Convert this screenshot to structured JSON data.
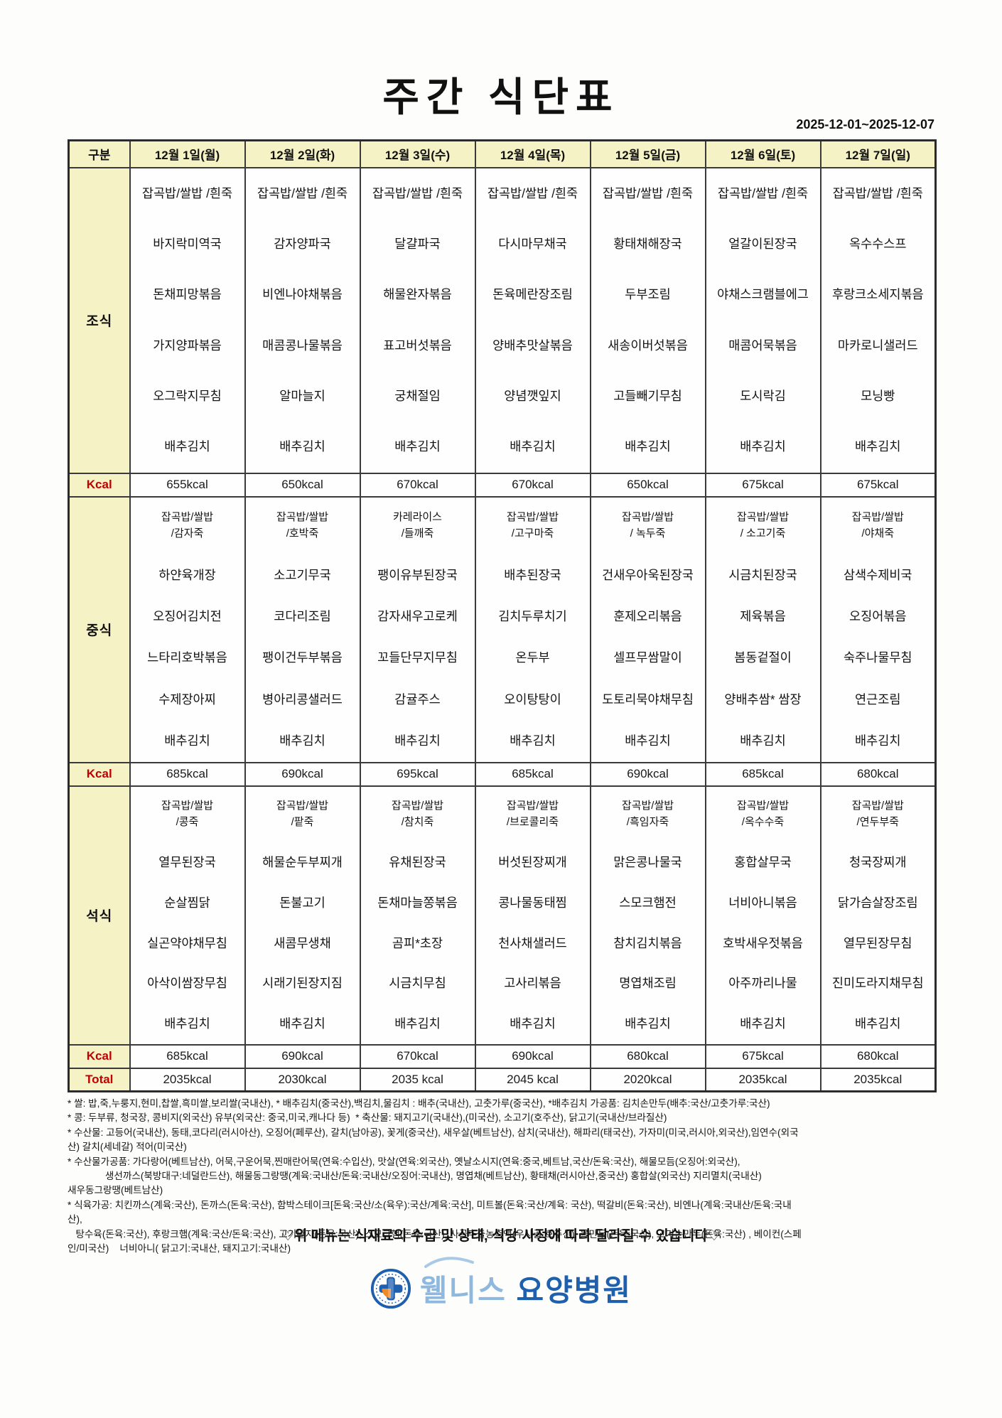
{
  "page": {
    "title": "주간  식단표",
    "date_range": "2025-12-01~2025-12-07"
  },
  "table": {
    "columns": [
      "구분",
      "12월 1일(월)",
      "12월 2일(화)",
      "12월 3일(수)",
      "12월 4일(목)",
      "12월 5일(금)",
      "12월 6일(토)",
      "12월 7일(일)"
    ],
    "sections": [
      {
        "id": "breakfast",
        "label": "조식",
        "days": [
          [
            "잡곡밥/쌀밥 /흰죽",
            "바지락미역국",
            "돈채피망볶음",
            "가지양파볶음",
            "오그락지무침",
            "배추김치"
          ],
          [
            "잡곡밥/쌀밥 /흰죽",
            "감자양파국",
            "비엔나야채볶음",
            "매콤콩나물볶음",
            "알마늘지",
            "배추김치"
          ],
          [
            "잡곡밥/쌀밥 /흰죽",
            "달걀파국",
            "해물완자볶음",
            "표고버섯볶음",
            "궁채절임",
            "배추김치"
          ],
          [
            "잡곡밥/쌀밥 /흰죽",
            "다시마무채국",
            "돈육메란장조림",
            "양배추맛살볶음",
            "양념깻잎지",
            "배추김치"
          ],
          [
            "잡곡밥/쌀밥 /흰죽",
            "황태채해장국",
            "두부조림",
            "새송이버섯볶음",
            "고들빼기무침",
            "배추김치"
          ],
          [
            "잡곡밥/쌀밥  /흰죽",
            "얼갈이된장국",
            "야채스크램블에그",
            "매콤어묵볶음",
            "도시락김",
            "배추김치"
          ],
          [
            "잡곡밥/쌀밥 /흰죽",
            "옥수수스프",
            "후랑크소세지볶음",
            "마카로니샐러드",
            "모닝빵",
            "배추김치"
          ]
        ],
        "kcal_label": "Kcal",
        "kcal": [
          "655kcal",
          "650kcal",
          "670kcal",
          "670kcal",
          "650kcal",
          "675kcal",
          "675kcal"
        ]
      },
      {
        "id": "lunch",
        "label": "중식",
        "days": [
          [
            "잡곡밥/쌀밥\n/감자죽",
            "하얀육개장",
            "오징어김치전",
            "느타리호박볶음",
            "수제장아찌",
            "배추김치"
          ],
          [
            "잡곡밥/쌀밥\n/호박죽",
            "소고기무국",
            "코다리조림",
            "팽이건두부볶음",
            "병아리콩샐러드",
            "배추김치"
          ],
          [
            "카레라이스\n/들깨죽",
            "팽이유부된장국",
            "감자새우고로케",
            "꼬들단무지무침",
            "감귤주스",
            "배추김치"
          ],
          [
            "잡곡밥/쌀밥\n/고구마죽",
            "배추된장국",
            "김치두루치기",
            "온두부",
            "오이탕탕이",
            "배추김치"
          ],
          [
            "잡곡밥/쌀밥\n/ 녹두죽",
            "건새우아욱된장국",
            "훈제오리볶음",
            "셀프무쌈말이",
            "도토리묵야채무침",
            "배추김치"
          ],
          [
            "잡곡밥/쌀밥\n/ 소고기죽",
            "시금치된장국",
            "제육볶음",
            "봄동겉절이",
            "양배추쌈* 쌈장",
            "배추김치"
          ],
          [
            "잡곡밥/쌀밥\n/야채죽",
            "삼색수제비국",
            "오징어볶음",
            "숙주나물무침",
            "연근조림",
            "배추김치"
          ]
        ],
        "kcal_label": "Kcal",
        "kcal": [
          "685kcal",
          "690kcal",
          "695kcal",
          "685kcal",
          "690kcal",
          "685kcal",
          "680kcal"
        ]
      },
      {
        "id": "dinner",
        "label": "석식",
        "days": [
          [
            "잡곡밥/쌀밥\n/콩죽",
            "열무된장국",
            "순살찜닭",
            "실곤약야채무침",
            "아삭이쌈장무침",
            "배추김치"
          ],
          [
            "잡곡밥/쌀밥\n/팥죽",
            "해물순두부찌개",
            "돈불고기",
            "새콤무생채",
            "시래기된장지짐",
            "배추김치"
          ],
          [
            "잡곡밥/쌀밥\n/참치죽",
            "유채된장국",
            "돈채마늘쫑볶음",
            "곰피*초장",
            "시금치무침",
            "배추김치"
          ],
          [
            "잡곡밥/쌀밥\n/브로콜리죽",
            "버섯된장찌개",
            "콩나물동태찜",
            "천사채샐러드",
            "고사리볶음",
            "배추김치"
          ],
          [
            "잡곡밥/쌀밥\n/흑임자죽",
            "맑은콩나물국",
            "스모크햄전",
            "참치김치볶음",
            "명엽채조림",
            "배추김치"
          ],
          [
            "잡곡밥/쌀밥\n/옥수수죽",
            "홍합살무국",
            "너비아니볶음",
            "호박새우젓볶음",
            "아주까리나물",
            "배추김치"
          ],
          [
            "잡곡밥/쌀밥\n/연두부죽",
            "청국장찌개",
            "닭가슴살장조림",
            "열무된장무침",
            "진미도라지채무침",
            "배추김치"
          ]
        ],
        "kcal_label": "Kcal",
        "kcal": [
          "685kcal",
          "690kcal",
          "670kcal",
          "690kcal",
          "680kcal",
          "675kcal",
          "680kcal"
        ]
      }
    ],
    "total": {
      "label": "Total",
      "values": [
        "2035kcal",
        "2030kcal",
        "2035 kcal",
        "2045 kcal",
        "2020kcal",
        "2035kcal",
        "2035kcal"
      ]
    }
  },
  "notes": {
    "lines": [
      "* 쌀: 밥,죽,누룽지,현미,찹쌀,흑미쌀,보리쌀(국내산), * 배추김치(중국산),백김치,물김치 : 배추(국내산), 고춧가루(중국산), *배추김치 가공품: 김치손만두(배추:국산/고춧가루:국산)",
      "* 콩: 두부류, 청국장, 콩비지(외국산) 유부(외국산: 중국,미국,캐나다 등)  * 축산물: 돼지고기(국내산),(미국산), 소고기(호주산), 닭고기(국내산/브라질산)",
      "* 수산물: 고등어(국내산), 동태,코다리(러시아산), 오징어(페루산), 갈치(남아공), 꽃게(중국산), 새우살(베트남산), 삼치(국내산), 해파리(태국산), 가자미(미국,러시아,외국산),임연수(외국\n산) 갈치(세네갈) 적어(미국산)",
      "* 수산물가공품: 가다랑어(베트남산), 어묵,구운어묵,찐매란어묵(연육:수입산), 맛살(연육:외국산), 옛날소시지(연육:중국,베트남,국산/돈육:국산), 해물모듬(오징어:외국산),\n              생선까스(북방대구:네덜란드산), 해물동그랑땡(계육:국내산/돈육:국내산/오징어:국내산), 명엽채(베트남산), 황태채(러시아산,중국산) 홍합살(외국산) 지리멸치(국내산)\n새우동그랑땡(베트남산)",
      "* 식육가공: 치킨까스(계육:국산), 돈까스(돈육:국산), 함박스테이크[돈육:국산/소(육우):국산/계육:국산], 미트볼(돈육:국산/계육: 국산), 떡갈비(돈육:국산), 비엔나(계육:국내산/돈육:국내\n산),\n   탕수육(돈육:국산), 후랑크햄(계육:국산/돈육:국산), 고기완자(돈육:국산), 스모크햄(돈육:국산), 사골추출농축액(우사골:호주산), 물만두(돈육:국산), 고기손만두(돈육:국산) , 베이컨(스페\n인/미국산)    너비아니( 닭고기:국내산, 돼지고기:국내산)"
    ]
  },
  "footer": {
    "message": "♡위 메뉴는 식재료의 수급 및 상태, 식당 사정에 따라 달라질 수 있습니다♡"
  },
  "logo": {
    "name_light": "웰니스",
    "name_dark": "요양병원"
  },
  "colors": {
    "header_bg": "#f5f2c6",
    "accent_red": "#c00000",
    "logo_light_blue": "#8fb8de",
    "logo_dark_blue": "#1e5fae",
    "logo_orange": "#f08a24"
  }
}
